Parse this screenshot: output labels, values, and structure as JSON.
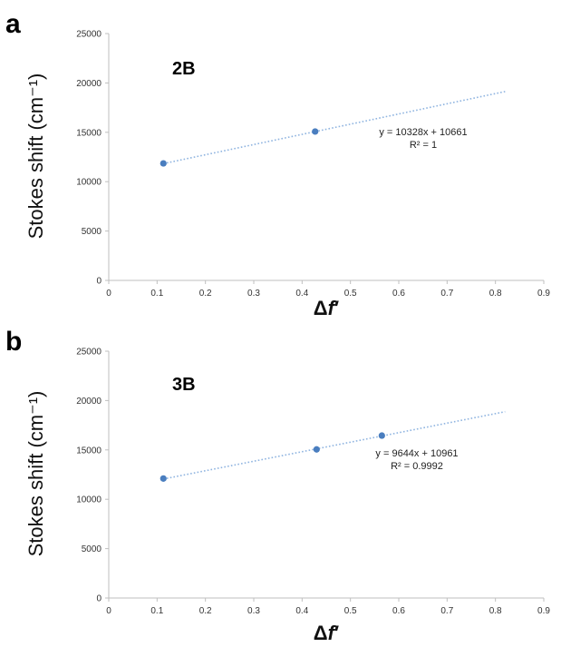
{
  "chart_data": [
    {
      "type": "scatter",
      "panel_letter": "a",
      "plot_label": "2B",
      "xlabel_prefix": "Δ",
      "xlabel_var": "f",
      "xlabel_suffix": "′",
      "ylabel": "Stokes shift (cm⁻¹)",
      "xlim": [
        0,
        0.9
      ],
      "ylim": [
        0,
        25000
      ],
      "x_ticks": [
        "0",
        "0.1",
        "0.2",
        "0.3",
        "0.4",
        "0.5",
        "0.6",
        "0.7",
        "0.8",
        "0.9"
      ],
      "y_ticks": [
        "0",
        "5000",
        "10000",
        "15000",
        "20000",
        "25000"
      ],
      "points": [
        {
          "x": 0.113,
          "y": 11850
        },
        {
          "x": 0.427,
          "y": 15080
        }
      ],
      "trendline": {
        "slope": 10328,
        "intercept": 10661,
        "x_range": [
          0.113,
          0.82
        ]
      },
      "equation": "y = 10328x + 10661",
      "r_squared": "R² = 1",
      "marker_color": "#4a7ebf",
      "trend_color": "#8fb4e0"
    },
    {
      "type": "scatter",
      "panel_letter": "b",
      "plot_label": "3B",
      "xlabel_prefix": "Δ",
      "xlabel_var": "f",
      "xlabel_suffix": "′",
      "ylabel": "Stokes shift (cm⁻¹)",
      "xlim": [
        0,
        0.9
      ],
      "ylim": [
        0,
        25000
      ],
      "x_ticks": [
        "0",
        "0.1",
        "0.2",
        "0.3",
        "0.4",
        "0.5",
        "0.6",
        "0.7",
        "0.8",
        "0.9"
      ],
      "y_ticks": [
        "0",
        "5000",
        "10000",
        "15000",
        "20000",
        "25000"
      ],
      "points": [
        {
          "x": 0.113,
          "y": 12100
        },
        {
          "x": 0.43,
          "y": 15050
        },
        {
          "x": 0.565,
          "y": 16450
        }
      ],
      "trendline": {
        "slope": 9644,
        "intercept": 10961,
        "x_range": [
          0.113,
          0.82
        ]
      },
      "equation": "y = 9644x + 10961",
      "r_squared": "R² = 0.9992",
      "marker_color": "#4a7ebf",
      "trend_color": "#8fb4e0"
    }
  ]
}
